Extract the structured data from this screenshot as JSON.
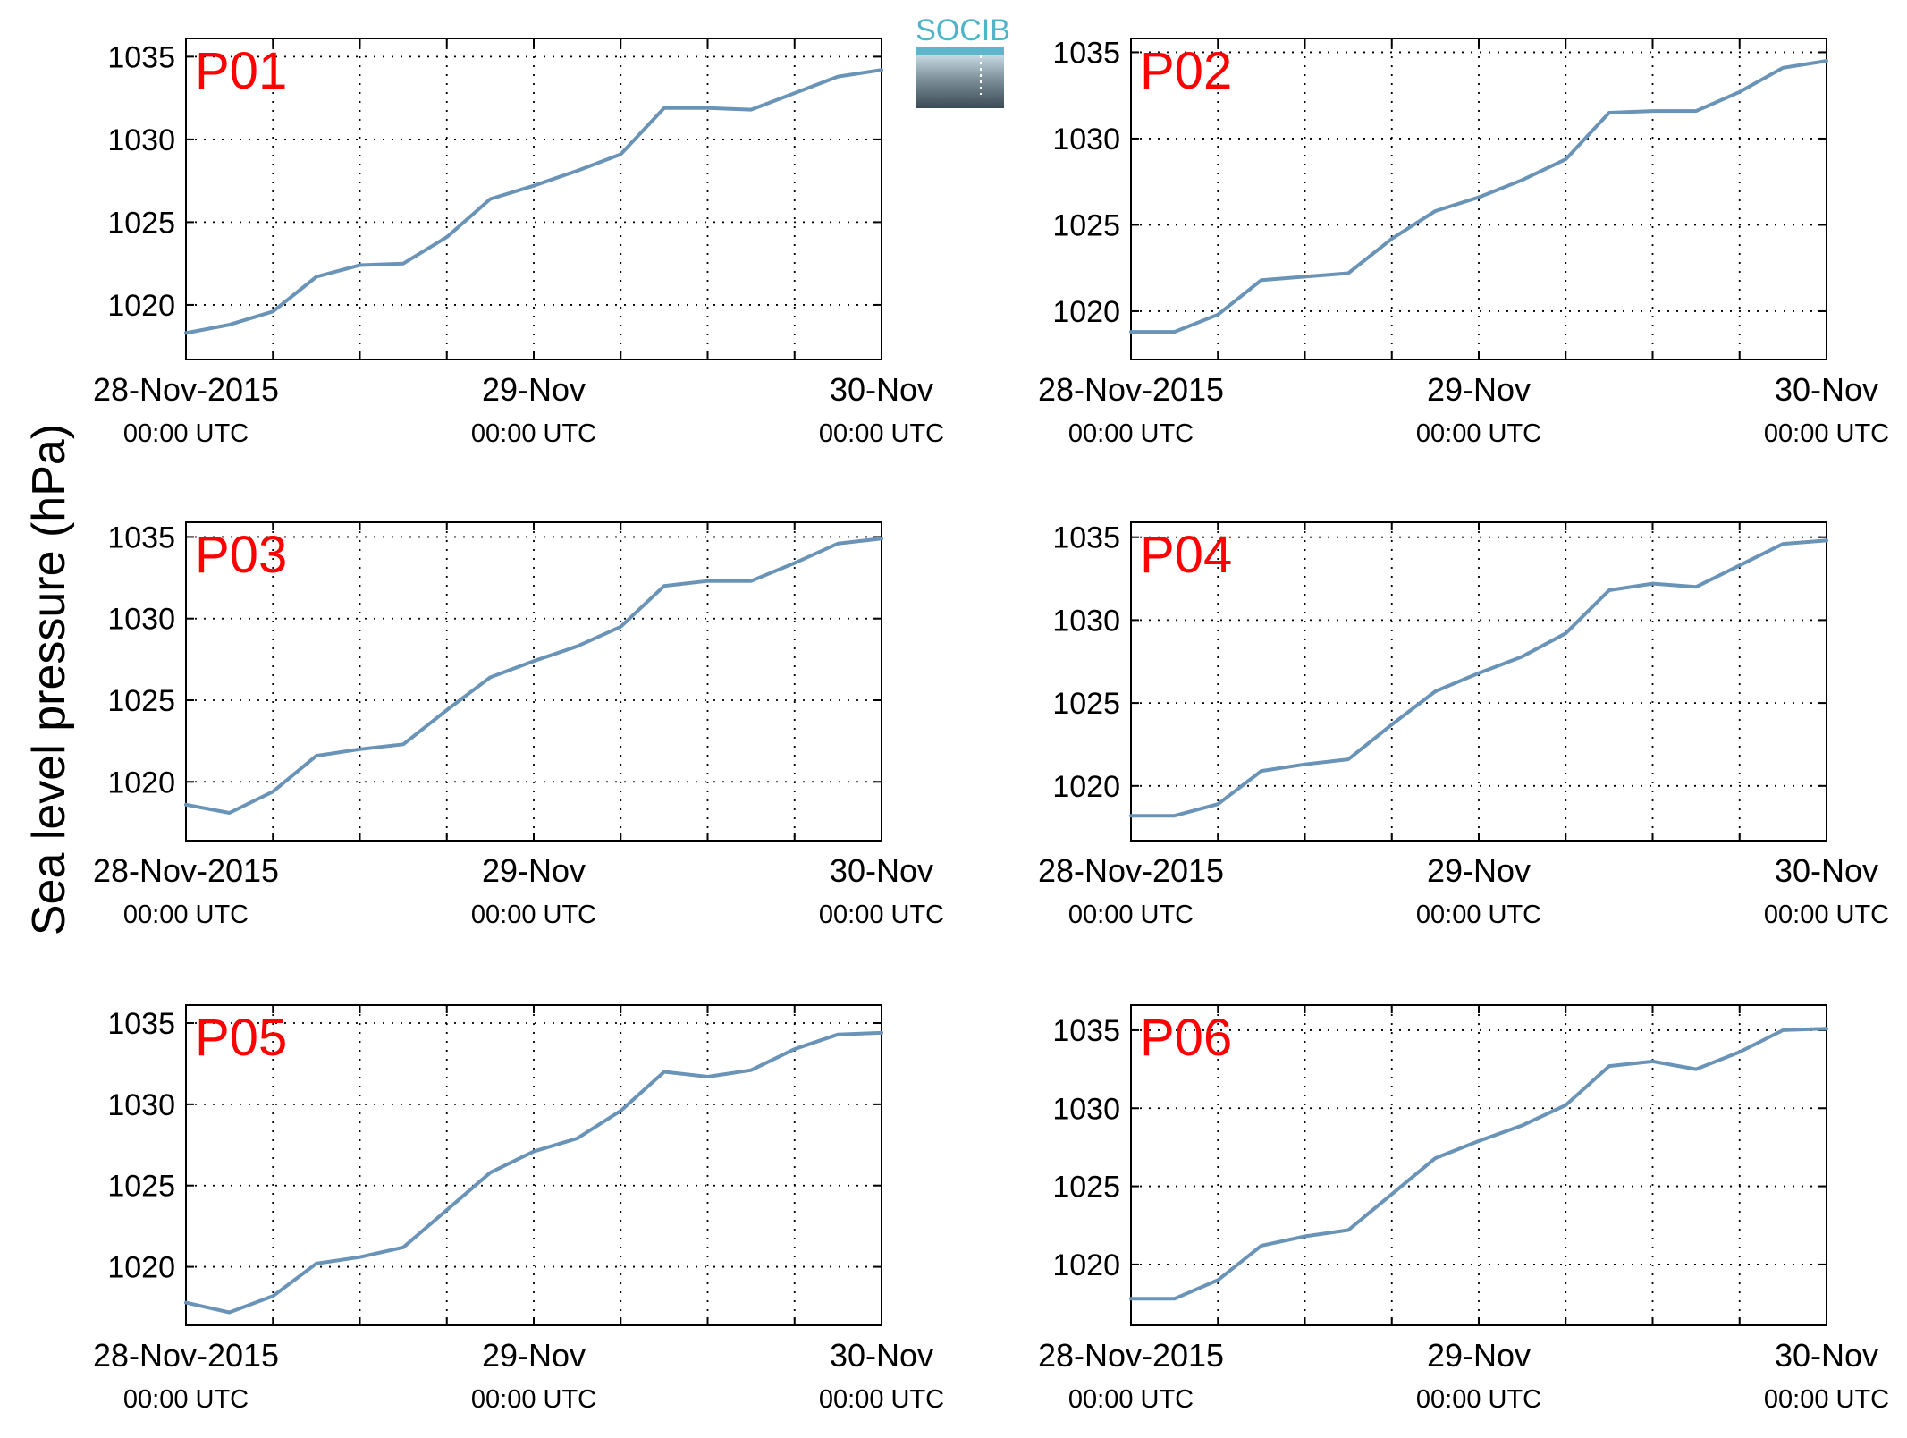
{
  "figure": {
    "ylabel": "Sea level pressure (hPa)",
    "logo_text": "SOCIB",
    "colors": {
      "line": "#6a93b8",
      "panel_label": "#ff0000",
      "axis": "#000000",
      "grid": "#000000"
    }
  },
  "chart_data": [
    {
      "type": "line",
      "panel": "P01",
      "x_ticks": [
        {
          "date": "28-Nov-2015",
          "time": "00:00 UTC"
        },
        {
          "date": "29-Nov",
          "time": "00:00 UTC"
        },
        {
          "date": "30-Nov",
          "time": "00:00 UTC"
        }
      ],
      "xlim": [
        "2015-11-28 00:00",
        "2015-11-30 00:00"
      ],
      "ylim": [
        1016.7,
        1036.1
      ],
      "y_ticks": [
        1020,
        1025,
        1030,
        1035
      ],
      "grid": true,
      "x_hours": [
        0,
        3,
        6,
        9,
        12,
        15,
        18,
        21,
        24,
        27,
        30,
        33,
        36,
        39,
        42,
        45,
        48
      ],
      "values": [
        1018.3,
        1018.8,
        1019.6,
        1021.7,
        1022.4,
        1022.5,
        1024.1,
        1026.4,
        1027.2,
        1028.1,
        1029.1,
        1031.9,
        1031.9,
        1031.8,
        1032.8,
        1033.8,
        1034.2
      ]
    },
    {
      "type": "line",
      "panel": "P02",
      "x_ticks": [
        {
          "date": "28-Nov-2015",
          "time": "00:00 UTC"
        },
        {
          "date": "29-Nov",
          "time": "00:00 UTC"
        },
        {
          "date": "30-Nov",
          "time": "00:00 UTC"
        }
      ],
      "xlim": [
        "2015-11-28 00:00",
        "2015-11-30 00:00"
      ],
      "ylim": [
        1017.2,
        1035.8
      ],
      "y_ticks": [
        1020,
        1025,
        1030,
        1035
      ],
      "grid": true,
      "x_hours": [
        0,
        3,
        6,
        9,
        12,
        15,
        18,
        21,
        24,
        27,
        30,
        33,
        36,
        39,
        42,
        45,
        48
      ],
      "values": [
        1018.8,
        1018.8,
        1019.8,
        1021.8,
        1022.0,
        1022.2,
        1024.2,
        1025.8,
        1026.6,
        1027.6,
        1028.8,
        1031.5,
        1031.6,
        1031.6,
        1032.7,
        1034.1,
        1034.5
      ]
    },
    {
      "type": "line",
      "panel": "P03",
      "x_ticks": [
        {
          "date": "28-Nov-2015",
          "time": "00:00 UTC"
        },
        {
          "date": "29-Nov",
          "time": "00:00 UTC"
        },
        {
          "date": "30-Nov",
          "time": "00:00 UTC"
        }
      ],
      "xlim": [
        "2015-11-28 00:00",
        "2015-11-30 00:00"
      ],
      "ylim": [
        1016.4,
        1035.9
      ],
      "y_ticks": [
        1020,
        1025,
        1030,
        1035
      ],
      "grid": true,
      "x_hours": [
        0,
        3,
        6,
        9,
        12,
        15,
        18,
        21,
        24,
        27,
        30,
        33,
        36,
        39,
        42,
        45,
        48
      ],
      "values": [
        1018.6,
        1018.1,
        1019.4,
        1021.6,
        1022.0,
        1022.3,
        1024.4,
        1026.4,
        1027.4,
        1028.3,
        1029.5,
        1032.0,
        1032.3,
        1032.3,
        1033.4,
        1034.6,
        1034.9
      ]
    },
    {
      "type": "line",
      "panel": "P04",
      "x_ticks": [
        {
          "date": "28-Nov-2015",
          "time": "00:00 UTC"
        },
        {
          "date": "29-Nov",
          "time": "00:00 UTC"
        },
        {
          "date": "30-Nov",
          "time": "00:00 UTC"
        }
      ],
      "xlim": [
        "2015-11-28 00:00",
        "2015-11-30 00:00"
      ],
      "ylim": [
        1016.7,
        1035.9
      ],
      "y_ticks": [
        1020,
        1025,
        1030,
        1035
      ],
      "grid": true,
      "x_hours": [
        0,
        3,
        6,
        9,
        12,
        15,
        18,
        21,
        24,
        27,
        30,
        33,
        36,
        39,
        42,
        45,
        48
      ],
      "values": [
        1018.2,
        1018.2,
        1018.9,
        1020.9,
        1021.3,
        1021.6,
        1023.7,
        1025.7,
        1026.8,
        1027.8,
        1029.2,
        1031.8,
        1032.2,
        1032.0,
        1033.3,
        1034.6,
        1034.8
      ]
    },
    {
      "type": "line",
      "panel": "P05",
      "x_ticks": [
        {
          "date": "28-Nov-2015",
          "time": "00:00 UTC"
        },
        {
          "date": "29-Nov",
          "time": "00:00 UTC"
        },
        {
          "date": "30-Nov",
          "time": "00:00 UTC"
        }
      ],
      "xlim": [
        "2015-11-28 00:00",
        "2015-11-30 00:00"
      ],
      "ylim": [
        1016.4,
        1036.1
      ],
      "y_ticks": [
        1020,
        1025,
        1030,
        1035
      ],
      "grid": true,
      "x_hours": [
        0,
        3,
        6,
        9,
        12,
        15,
        18,
        21,
        24,
        27,
        30,
        33,
        36,
        39,
        42,
        45,
        48
      ],
      "values": [
        1017.8,
        1017.2,
        1018.2,
        1020.2,
        1020.6,
        1021.2,
        1023.5,
        1025.8,
        1027.1,
        1027.9,
        1029.6,
        1032.0,
        1031.7,
        1032.1,
        1033.4,
        1034.3,
        1034.4
      ]
    },
    {
      "type": "line",
      "panel": "P06",
      "x_ticks": [
        {
          "date": "28-Nov-2015",
          "time": "00:00 UTC"
        },
        {
          "date": "29-Nov",
          "time": "00:00 UTC"
        },
        {
          "date": "30-Nov",
          "time": "00:00 UTC"
        }
      ],
      "xlim": [
        "2015-11-28 00:00",
        "2015-11-30 00:00"
      ],
      "ylim": [
        1016.1,
        1036.6
      ],
      "y_ticks": [
        1020,
        1025,
        1030,
        1035
      ],
      "grid": true,
      "x_hours": [
        0,
        3,
        6,
        9,
        12,
        15,
        18,
        21,
        24,
        27,
        30,
        33,
        36,
        39,
        42,
        45,
        48
      ],
      "values": [
        1017.8,
        1017.8,
        1019.0,
        1021.2,
        1021.8,
        1022.2,
        1024.5,
        1026.8,
        1027.9,
        1028.9,
        1030.2,
        1032.7,
        1033.0,
        1032.5,
        1033.6,
        1035.0,
        1035.1
      ]
    }
  ]
}
